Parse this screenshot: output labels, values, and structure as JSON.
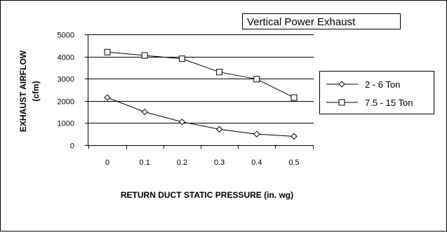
{
  "chart_data": {
    "type": "line",
    "title": "Vertical Power Exhaust",
    "xlabel": "RETURN DUCT STATIC PRESSURE (in. wg)",
    "ylabel_line1": "EXHAUST AIRFLOW",
    "ylabel_line2": "(cfm)",
    "x": [
      0,
      0.1,
      0.2,
      0.3,
      0.4,
      0.5
    ],
    "x_tick_labels": [
      "0",
      "0.1",
      "0.2",
      "0.3",
      "0.4",
      "0.5"
    ],
    "y_ticks": [
      0,
      1000,
      2000,
      3000,
      4000,
      5000
    ],
    "y_tick_labels": [
      "0",
      "1000",
      "2000",
      "3000",
      "4000",
      "5000"
    ],
    "ylim": [
      0,
      5000
    ],
    "grid": "horizontal",
    "legend_position": "right",
    "series": [
      {
        "name": "2 - 6 Ton",
        "marker": "diamond",
        "values": [
          2150,
          1500,
          1050,
          720,
          500,
          400
        ]
      },
      {
        "name": "7.5 - 15 Ton",
        "marker": "square",
        "values": [
          4200,
          4050,
          3900,
          3300,
          2980,
          2150
        ]
      }
    ]
  }
}
